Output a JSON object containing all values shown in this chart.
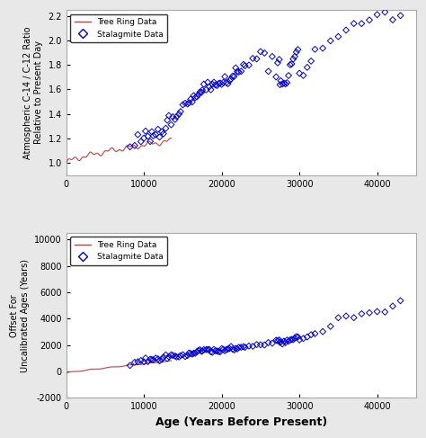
{
  "fig_width": 4.74,
  "fig_height": 4.87,
  "dpi": 100,
  "bg_color": "#e8e8e8",
  "plot_bg_color": "#ffffff",
  "top_plot": {
    "ylabel": "Atmospheric C-14 / C-12 Ratio\nRelative to Present Day",
    "xlim": [
      0,
      45000
    ],
    "ylim": [
      0.9,
      2.25
    ],
    "yticks": [
      1.0,
      1.2,
      1.4,
      1.6,
      1.8,
      2.0,
      2.2
    ],
    "xticks": [
      0,
      10000,
      20000,
      30000,
      40000
    ],
    "xticklabels": [
      "0",
      "10000",
      "20000",
      "30000",
      "40000"
    ]
  },
  "bottom_plot": {
    "xlabel": "Age (Years Before Present)",
    "ylabel": "Offset For\nUncalibrated Ages (Years)",
    "xlim": [
      0,
      45000
    ],
    "ylim": [
      -2000,
      10500
    ],
    "yticks": [
      -2000,
      0,
      2000,
      4000,
      6000,
      8000,
      10000
    ],
    "xticks": [
      0,
      10000,
      20000,
      30000,
      40000
    ],
    "xticklabels": [
      "0",
      "10000",
      "20000",
      "30000",
      "40000"
    ]
  },
  "tree_ring_color": "#c04040",
  "stalagmite_color": "#0000cc"
}
